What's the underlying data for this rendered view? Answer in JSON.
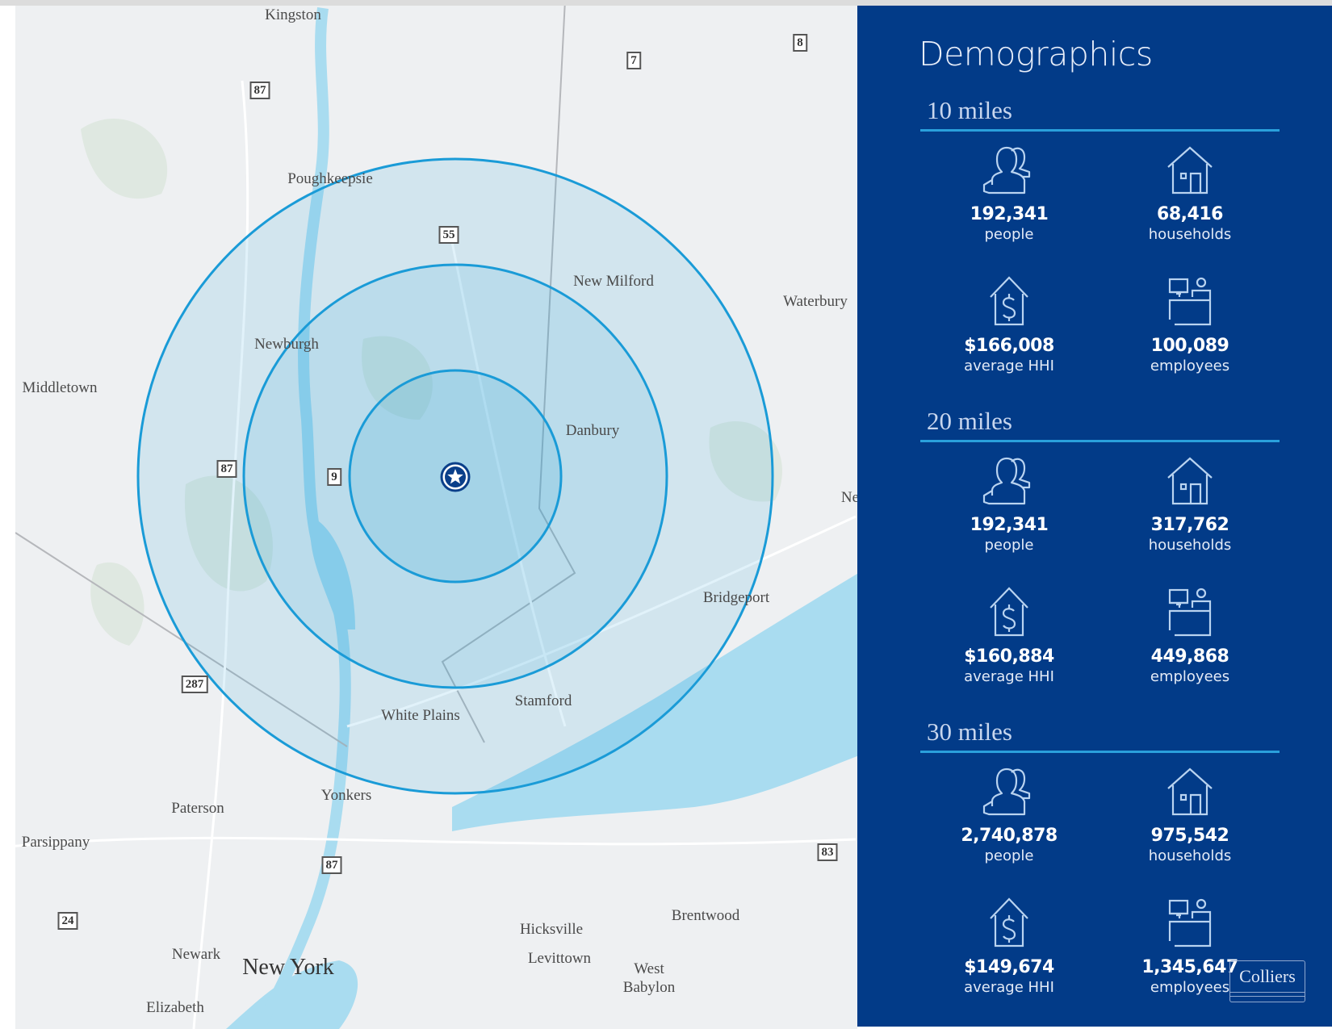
{
  "map": {
    "places": [
      {
        "name": "Kingston"
      },
      {
        "name": "Poughkeepsie"
      },
      {
        "name": "New Milford"
      },
      {
        "name": "Waterbury"
      },
      {
        "name": "Newburgh"
      },
      {
        "name": "Middletown"
      },
      {
        "name": "Danbury"
      },
      {
        "name": "Ne"
      },
      {
        "name": "Bridgeport"
      },
      {
        "name": "Stamford"
      },
      {
        "name": "White Plains"
      },
      {
        "name": "Yonkers"
      },
      {
        "name": "Paterson"
      },
      {
        "name": "Parsippany"
      },
      {
        "name": "Hicksville"
      },
      {
        "name": "Brentwood"
      },
      {
        "name": "Levittown"
      },
      {
        "name": "West"
      },
      {
        "name": "Babylon"
      },
      {
        "name": "Newark"
      },
      {
        "name": "New York"
      },
      {
        "name": "Elizabeth"
      }
    ],
    "shields": [
      "87",
      "7",
      "8",
      "55",
      "9",
      "87",
      "287",
      "87",
      "83",
      "24"
    ],
    "rings_miles": [
      10,
      20,
      30
    ],
    "ring_color": "#1a9bd7",
    "marker": "star-pin-icon"
  },
  "panel": {
    "title": "Demographics",
    "background": "#023b88",
    "sections": [
      {
        "label": "10 miles",
        "stats": [
          {
            "icon": "people-icon",
            "value": "192,341",
            "label": "people"
          },
          {
            "icon": "house-icon",
            "value": "68,416",
            "label": "households"
          },
          {
            "icon": "house-dollar-icon",
            "value": "$166,008",
            "label": "average HHI"
          },
          {
            "icon": "employee-desk-icon",
            "value": "100,089",
            "label": "employees"
          }
        ]
      },
      {
        "label": "20 miles",
        "stats": [
          {
            "icon": "people-icon",
            "value": "192,341",
            "label": "people"
          },
          {
            "icon": "house-icon",
            "value": "317,762",
            "label": "households"
          },
          {
            "icon": "house-dollar-icon",
            "value": "$160,884",
            "label": "average HHI"
          },
          {
            "icon": "employee-desk-icon",
            "value": "449,868",
            "label": "employees"
          }
        ]
      },
      {
        "label": "30 miles",
        "stats": [
          {
            "icon": "people-icon",
            "value": "2,740,878",
            "label": "people"
          },
          {
            "icon": "house-icon",
            "value": "975,542",
            "label": "households"
          },
          {
            "icon": "house-dollar-icon",
            "value": "$149,674",
            "label": "average HHI"
          },
          {
            "icon": "employee-desk-icon",
            "value": "1,345,647",
            "label": "employees"
          }
        ]
      }
    ]
  },
  "logo": {
    "text": "Colliers"
  }
}
